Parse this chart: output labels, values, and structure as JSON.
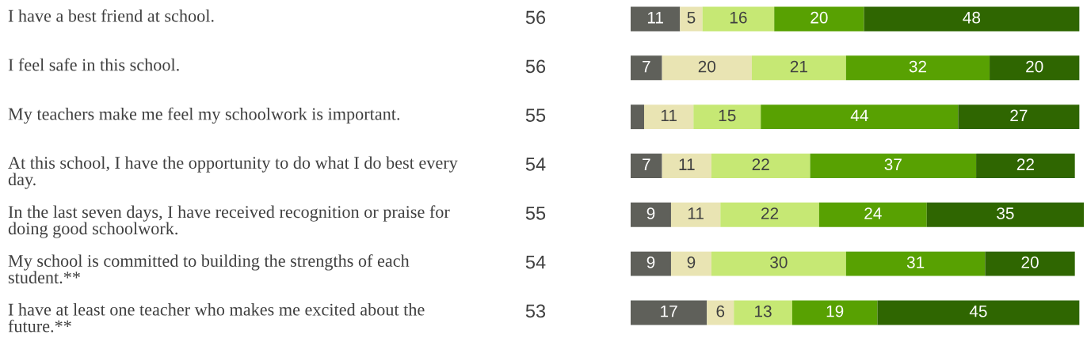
{
  "chart_data": {
    "type": "bar",
    "orientation": "horizontal",
    "stacked": true,
    "categories": [
      "I have a best friend at school.",
      "I feel safe in this school.",
      "My teachers make me feel my schoolwork is important.",
      "At this school, I have the opportunity to do what I do best every day.",
      "In the last seven days, I have received recognition or praise for doing good schoolwork.",
      "My school is committed to building the strengths of each student.**",
      "I have at least one teacher who makes me excited about the future.**"
    ],
    "series": [
      {
        "color": "#5f605a",
        "values": [
          11,
          7,
          3,
          7,
          9,
          9,
          17
        ],
        "value_labels": [
          "11",
          "7",
          null,
          "7",
          "9",
          "9",
          "17"
        ]
      },
      {
        "color": "#e9e4b3",
        "values": [
          5,
          20,
          11,
          11,
          11,
          9,
          6
        ],
        "value_labels": [
          "5",
          "20",
          "11",
          "11",
          "11",
          "9",
          "6"
        ]
      },
      {
        "color": "#c6e874",
        "values": [
          16,
          21,
          15,
          22,
          22,
          30,
          13
        ],
        "value_labels": [
          "16",
          "21",
          "15",
          "22",
          "22",
          "30",
          "13"
        ]
      },
      {
        "color": "#58a102",
        "values": [
          20,
          32,
          44,
          37,
          24,
          31,
          19
        ],
        "value_labels": [
          "20",
          "32",
          "44",
          "37",
          "24",
          "31",
          "19"
        ]
      },
      {
        "color": "#2f6601",
        "values": [
          48,
          20,
          27,
          22,
          35,
          20,
          45
        ],
        "value_labels": [
          "48",
          "20",
          "27",
          "22",
          "35",
          "20",
          "45"
        ]
      }
    ],
    "annotations": [
      "56",
      "56",
      "55",
      "54",
      "55",
      "54",
      "53"
    ]
  }
}
